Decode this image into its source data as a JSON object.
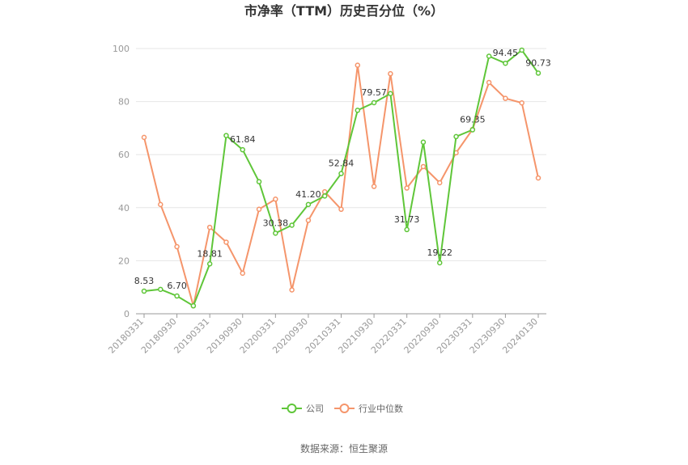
{
  "chart_data": {
    "type": "line",
    "title": "市净率（TTM）历史百分位（%）",
    "ylim": [
      0,
      100
    ],
    "yticks": [
      0,
      20,
      40,
      60,
      80,
      100
    ],
    "x_tick_labels": [
      "20180331",
      "20180930",
      "20190331",
      "20190930",
      "20200331",
      "20200930",
      "20210331",
      "20210930",
      "20220331",
      "20220930",
      "20230331",
      "20230930",
      "20240130"
    ],
    "grid": true,
    "legend_position": "bottom",
    "series": [
      {
        "name": "公司",
        "color": "#5fc639",
        "values": [
          8.53,
          9.2,
          6.7,
          3.0,
          18.81,
          67.2,
          61.84,
          49.8,
          30.38,
          33.4,
          41.2,
          44.4,
          52.84,
          76.7,
          79.57,
          83.0,
          31.73,
          64.7,
          19.22,
          66.8,
          69.35,
          97.1,
          94.45,
          99.4,
          90.73
        ],
        "labels": {
          "0": "8.53",
          "2": "6.70",
          "4": "18.81",
          "6": "61.84",
          "8": "30.38",
          "10": "41.20",
          "12": "52.84",
          "14": "79.57",
          "16": "31.73",
          "18": "19.22",
          "20": "69.35",
          "22": "94.45",
          "24": "90.73"
        }
      },
      {
        "name": "行业中位数",
        "color": "#f5956b",
        "values": [
          66.5,
          41.2,
          25.3,
          3.0,
          32.6,
          27.0,
          15.3,
          39.4,
          43.2,
          9.0,
          35.2,
          46.0,
          39.4,
          93.7,
          48.0,
          90.5,
          47.4,
          55.5,
          49.4,
          60.7,
          69.5,
          87.2,
          81.2,
          79.5,
          51.2
        ]
      }
    ]
  },
  "source": "数据来源：恒生聚源"
}
